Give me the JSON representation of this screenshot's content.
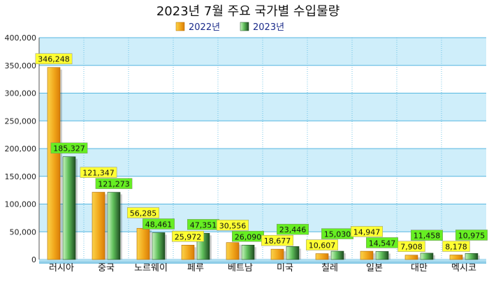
{
  "chart_data": {
    "type": "bar",
    "title": "2023년 7월 주요 국가별 수입물량",
    "categories": [
      "러시아",
      "중국",
      "노르웨이",
      "페루",
      "베트남",
      "미국",
      "칠레",
      "일본",
      "대만",
      "멕시코"
    ],
    "series": [
      {
        "name": "2022년",
        "values": [
          346248,
          121347,
          56285,
          25972,
          30556,
          18677,
          10607,
          14947,
          7908,
          8178
        ]
      },
      {
        "name": "2023년",
        "values": [
          185327,
          121273,
          48461,
          47351,
          26090,
          23446,
          15030,
          14547,
          11458,
          10975
        ]
      }
    ],
    "ylim": [
      0,
      400000
    ],
    "yticks": [
      0,
      50000,
      100000,
      150000,
      200000,
      250000,
      300000,
      350000,
      400000
    ],
    "ytick_labels": [
      "0",
      "50,000",
      "100,000",
      "150,000",
      "200,000",
      "250,000",
      "300,000",
      "350,000",
      "400,000"
    ],
    "grid": true,
    "legend_position": "top-center",
    "colors": {
      "series_2022": "#f0a51a",
      "series_2023": "#2d8a3c",
      "label_2022_bg": "#ffff33",
      "label_2023_bg": "#66ee22",
      "band": "#cfeefa",
      "band_alt": "#ffffff",
      "grid": "#55b6e0"
    }
  }
}
